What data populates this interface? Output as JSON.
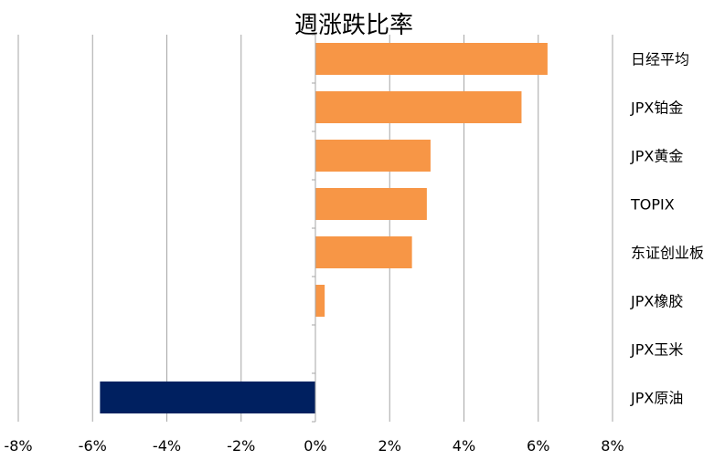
{
  "chart_data": {
    "type": "bar",
    "orientation": "horizontal",
    "title": "週涨跌比率",
    "categories": [
      "日经平均",
      "JPX铂金",
      "JPX黄金",
      "TOPIX",
      "东证创业板",
      "JPX橡胶",
      "JPX玉米",
      "JPX原油"
    ],
    "values": [
      6.25,
      5.55,
      3.1,
      3.0,
      2.6,
      0.25,
      0.0,
      -5.8
    ],
    "xlim": [
      -8,
      8
    ],
    "xticks": [
      -8,
      -6,
      -4,
      -2,
      0,
      2,
      4,
      6,
      8
    ],
    "tick_format": "%",
    "grid": true,
    "colors": {
      "positive": "#f79646",
      "negative": "#002060"
    }
  }
}
